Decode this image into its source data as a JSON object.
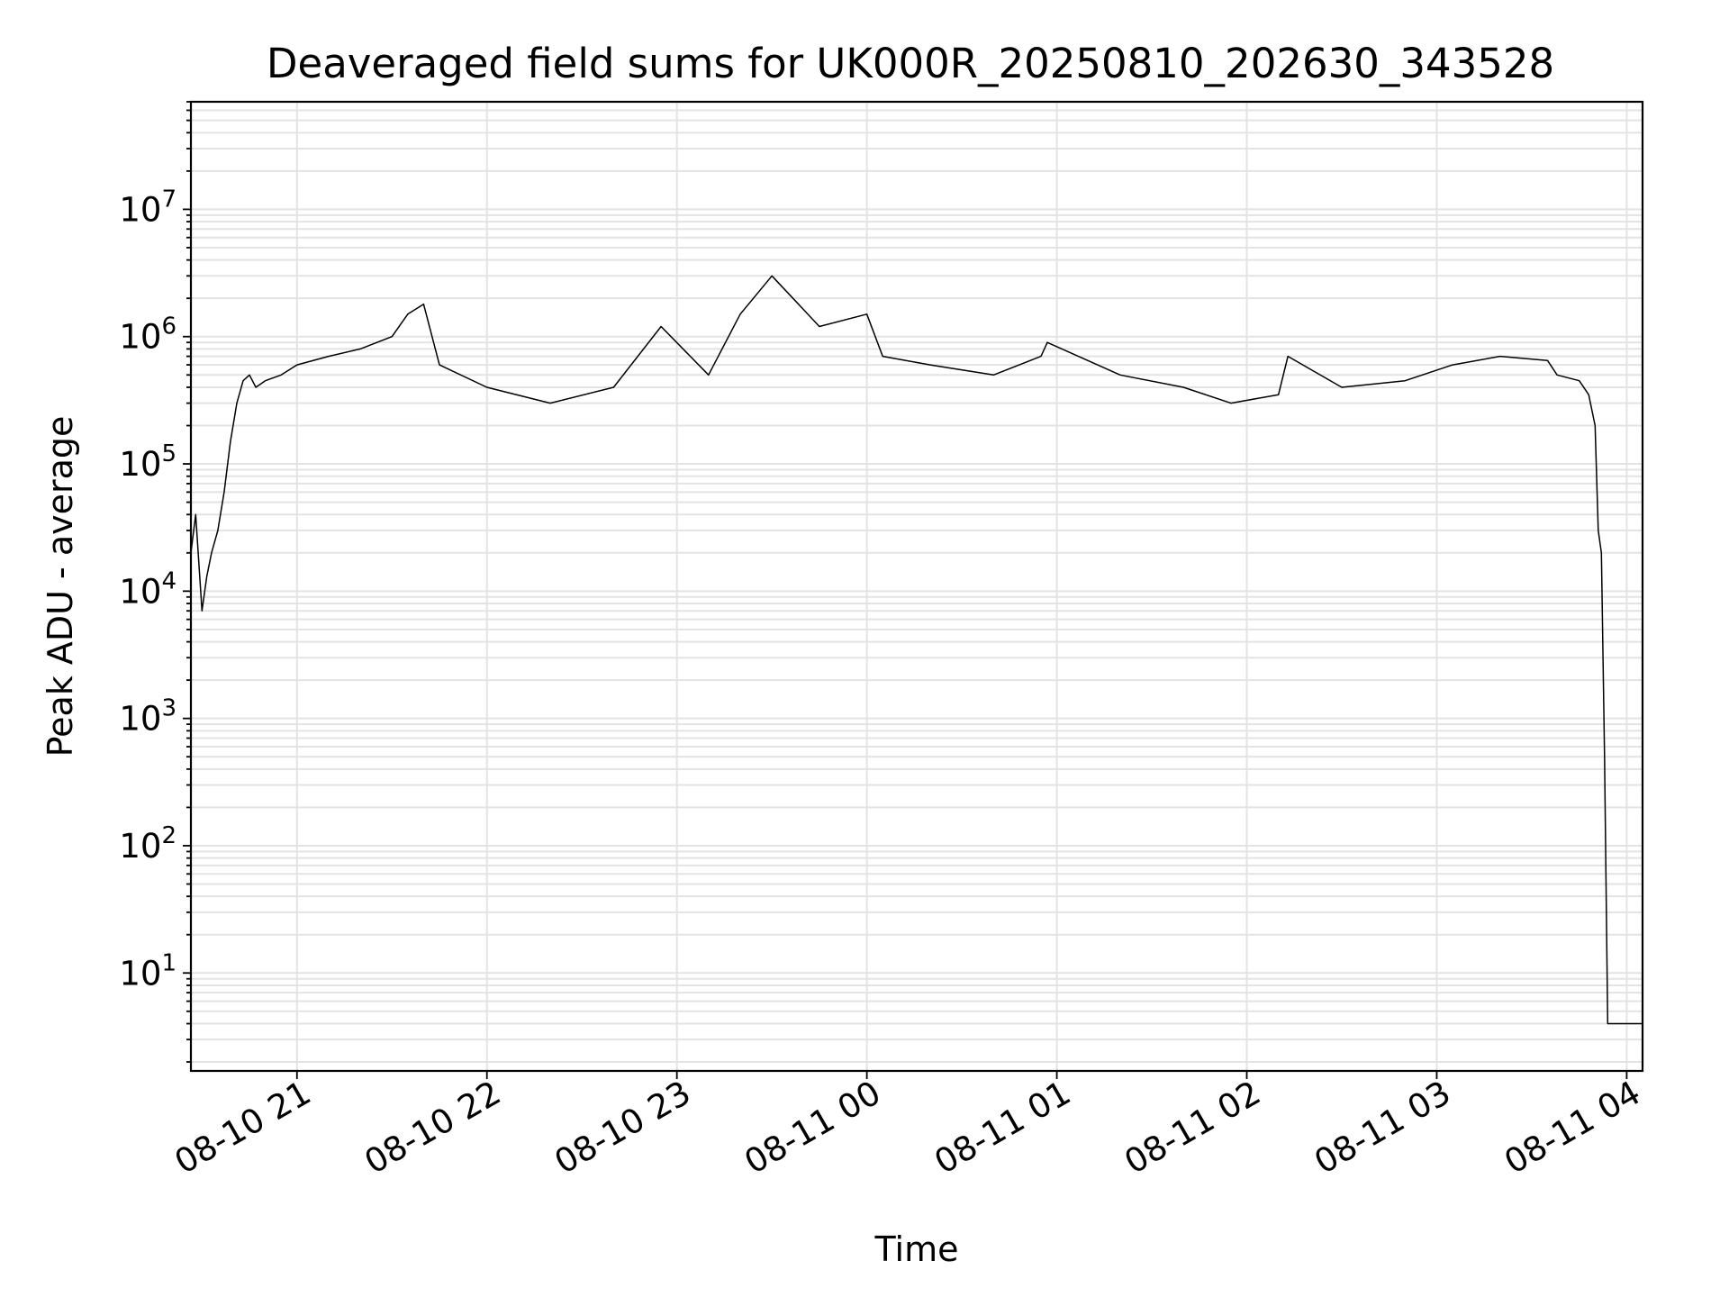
{
  "chart_data": {
    "type": "line",
    "title": "Deaveraged field sums for UK000R_20250810_202630_343528",
    "xlabel": "Time",
    "ylabel": "Peak ADU - average",
    "x_tick_labels": [
      "08-10 21",
      "08-10 22",
      "08-10 23",
      "08-11 00",
      "08-11 01",
      "08-11 02",
      "08-11 03",
      "08-11 04"
    ],
    "x_range": [
      "2025-08-10 20:26:30",
      "2025-08-11 04:05:00"
    ],
    "y_scale": "log",
    "y_tick_labels": [
      {
        "base": "10",
        "exp": "1"
      },
      {
        "base": "10",
        "exp": "2"
      },
      {
        "base": "10",
        "exp": "3"
      },
      {
        "base": "10",
        "exp": "4"
      },
      {
        "base": "10",
        "exp": "5"
      },
      {
        "base": "10",
        "exp": "6"
      },
      {
        "base": "10",
        "exp": "7"
      }
    ],
    "ylim": [
      1.7,
      70000000
    ],
    "grid": true,
    "line_color": "#000000",
    "grid_color": "#e3e3e3",
    "series": [
      {
        "x": [
          "2025-08-10 20:26:30",
          "2025-08-10 20:28:00",
          "2025-08-10 20:30:00",
          "2025-08-10 20:31:30",
          "2025-08-10 20:33:00",
          "2025-08-10 20:35:00",
          "2025-08-10 20:37:00",
          "2025-08-10 20:39:00",
          "2025-08-10 20:41:00",
          "2025-08-10 20:43:00",
          "2025-08-10 20:45:00",
          "2025-08-10 20:47:00",
          "2025-08-10 20:50:00",
          "2025-08-10 20:55:00",
          "2025-08-10 21:00:00",
          "2025-08-10 21:10:00",
          "2025-08-10 21:20:00",
          "2025-08-10 21:30:00",
          "2025-08-10 21:35:00",
          "2025-08-10 21:40:00",
          "2025-08-10 21:45:00",
          "2025-08-10 22:00:00",
          "2025-08-10 22:20:00",
          "2025-08-10 22:40:00",
          "2025-08-10 22:55:00",
          "2025-08-10 23:10:00",
          "2025-08-10 23:20:00",
          "2025-08-10 23:30:00",
          "2025-08-10 23:45:00",
          "2025-08-11 00:00:00",
          "2025-08-11 00:05:00",
          "2025-08-11 00:20:00",
          "2025-08-11 00:40:00",
          "2025-08-11 00:55:00",
          "2025-08-11 00:57:00",
          "2025-08-11 01:20:00",
          "2025-08-11 01:40:00",
          "2025-08-11 01:55:00",
          "2025-08-11 02:10:00",
          "2025-08-11 02:13:00",
          "2025-08-11 02:30:00",
          "2025-08-11 02:50:00",
          "2025-08-11 03:05:00",
          "2025-08-11 03:20:00",
          "2025-08-11 03:35:00",
          "2025-08-11 03:38:00",
          "2025-08-11 03:45:00",
          "2025-08-11 03:48:00",
          "2025-08-11 03:50:00",
          "2025-08-11 03:51:00",
          "2025-08-11 03:52:00",
          "2025-08-11 03:53:00",
          "2025-08-11 03:54:00",
          "2025-08-11 04:00:00",
          "2025-08-11 04:05:00"
        ],
        "y": [
          20000,
          40000,
          7000,
          13000,
          20000,
          30000,
          60000,
          150000,
          300000,
          450000,
          500000,
          400000,
          450000,
          500000,
          600000,
          700000,
          800000,
          1000000,
          1500000,
          1800000,
          600000,
          400000,
          300000,
          400000,
          1200000,
          500000,
          1500000,
          3000000,
          1200000,
          1500000,
          700000,
          600000,
          500000,
          700000,
          900000,
          500000,
          400000,
          300000,
          350000,
          700000,
          400000,
          450000,
          600000,
          700000,
          650000,
          500000,
          450000,
          350000,
          200000,
          30000,
          20000,
          500,
          4,
          4,
          4
        ]
      }
    ]
  }
}
